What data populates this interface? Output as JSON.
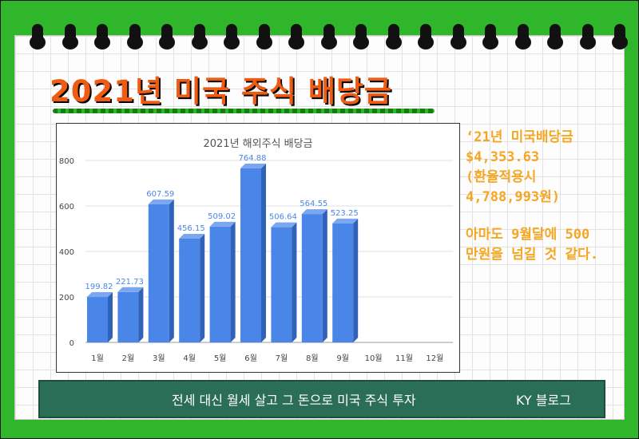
{
  "colors": {
    "frame": "#30b62b",
    "title": "#ef5b13",
    "bar": "#4a86e8",
    "bar_label": "#4a86e8",
    "side_text": "#f5a623",
    "bottom_bar": "#2b6e57"
  },
  "header": {
    "title": "2021년 미국 주식 배당금"
  },
  "chart_data": {
    "type": "bar",
    "title": "2021년 해외주식 배당금",
    "xlabel": "",
    "ylabel": "",
    "categories": [
      "1월",
      "2월",
      "3월",
      "4월",
      "5월",
      "6월",
      "7월",
      "8월",
      "9월",
      "10월",
      "11월",
      "12월"
    ],
    "values": [
      199.82,
      221.73,
      607.59,
      456.15,
      509.02,
      764.88,
      506.64,
      564.55,
      523.25,
      null,
      null,
      null
    ],
    "data_labels": [
      "199.82",
      "221.73",
      "607.59",
      "456.15",
      "509.02",
      "764.88",
      "506.64",
      "564.55",
      "523.25",
      "",
      "",
      ""
    ],
    "yticks": [
      0,
      200,
      400,
      600,
      800
    ],
    "ylim": [
      0,
      800
    ],
    "grid": true,
    "legend": "none"
  },
  "side_note": {
    "lines": [
      "‘21년 미국배당금",
      "$4,353.63",
      "(환율적용시",
      "4,788,993원)"
    ],
    "lines2": [
      "아마도 9월달에 500",
      "만원을 넘길 것 같다."
    ]
  },
  "footer": {
    "text": "전세 대신 월세 살고 그 돈으로 미국 주식 투자",
    "blog": "KY 블로그"
  }
}
